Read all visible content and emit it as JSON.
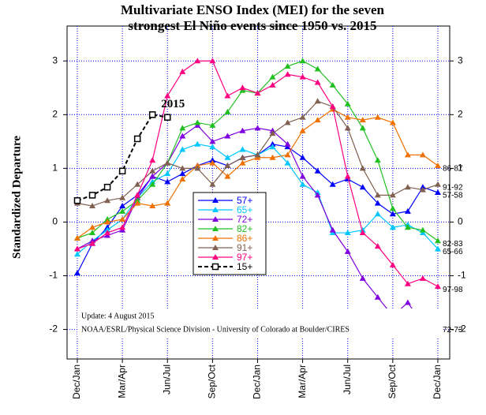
{
  "chart_data": {
    "type": "line",
    "title": [
      "Multivariate ENSO Index (MEI) for the seven",
      "strongest El Niño events since 1950 vs. 2015"
    ],
    "ylabel": "Standardized Departure",
    "categories": [
      "Dec/Jan",
      null,
      null,
      "Mar/Apr",
      null,
      null,
      "Jun/Jul",
      null,
      null,
      "Sep/Oct",
      null,
      null,
      "Dec/Jan",
      null,
      null,
      "Mar/Apr",
      null,
      null,
      "Jun/Jul",
      null,
      null,
      "Sep/Oct",
      null,
      null,
      "Dec/Jan"
    ],
    "ylim": [
      -2.55,
      3.65
    ],
    "yticks": [
      -2,
      -1,
      0,
      1,
      2,
      3
    ],
    "grid": true,
    "series": [
      {
        "name": "57+",
        "color": "#0000ff",
        "marker": "triangle",
        "label": "57-58",
        "values": [
          -0.95,
          -0.4,
          -0.1,
          0.3,
          0.5,
          0.85,
          0.75,
          0.9,
          1.05,
          1.15,
          1.05,
          1.2,
          1.25,
          1.45,
          1.4,
          1.2,
          0.95,
          0.7,
          0.8,
          0.65,
          0.35,
          0.15,
          0.2,
          0.65,
          0.55
        ]
      },
      {
        "name": "65+",
        "color": "#00c8ff",
        "marker": "triangle",
        "label": "65-66",
        "values": [
          -0.6,
          -0.35,
          -0.15,
          0.05,
          0.45,
          0.75,
          0.9,
          1.35,
          1.45,
          1.4,
          1.2,
          1.35,
          1.25,
          1.4,
          1.1,
          0.7,
          0.55,
          -0.2,
          -0.2,
          -0.15,
          0.15,
          -0.1,
          -0.05,
          -0.2,
          -0.5
        ]
      },
      {
        "name": "72+",
        "color": "#8000e0",
        "marker": "triangle",
        "label": "72-73",
        "values": [
          -0.5,
          -0.35,
          -0.25,
          -0.15,
          0.45,
          0.85,
          1.1,
          1.6,
          1.8,
          1.5,
          1.6,
          1.7,
          1.75,
          1.7,
          1.45,
          0.85,
          0.5,
          -0.15,
          -0.55,
          -1.05,
          -1.4,
          -1.75,
          -1.5,
          -1.9,
          -1.95
        ]
      },
      {
        "name": "82+",
        "color": "#20c020",
        "marker": "triangle",
        "label": "82-83",
        "values": [
          -0.3,
          -0.2,
          0.05,
          0.2,
          0.4,
          0.7,
          1.1,
          1.75,
          1.85,
          1.8,
          2.05,
          2.45,
          2.4,
          2.7,
          2.9,
          3.0,
          2.85,
          2.55,
          2.2,
          1.75,
          1.15,
          0.25,
          -0.1,
          -0.15,
          -0.35
        ]
      },
      {
        "name": "86+",
        "color": "#f07000",
        "marker": "triangle",
        "label": "86-87",
        "values": [
          -0.3,
          -0.1,
          0.0,
          0.05,
          0.35,
          0.3,
          0.35,
          0.8,
          1.05,
          1.1,
          0.85,
          1.1,
          1.2,
          1.2,
          1.25,
          1.7,
          1.9,
          2.1,
          1.95,
          1.9,
          1.95,
          1.85,
          1.25,
          1.25,
          1.05
        ]
      },
      {
        "name": "91+",
        "color": "#806050",
        "marker": "triangle",
        "label": "91-92",
        "values": [
          0.35,
          0.3,
          0.4,
          0.45,
          0.7,
          0.95,
          1.1,
          1.0,
          1.0,
          0.7,
          1.05,
          1.2,
          1.25,
          1.65,
          1.85,
          1.95,
          2.25,
          2.15,
          1.75,
          1.0,
          0.5,
          0.5,
          0.65,
          0.6,
          0.7
        ]
      },
      {
        "name": "97+",
        "color": "#ff0080",
        "marker": "triangle",
        "label": "97-98",
        "values": [
          -0.5,
          -0.4,
          -0.2,
          -0.1,
          0.5,
          1.15,
          2.35,
          2.8,
          3.0,
          3.0,
          2.35,
          2.5,
          2.4,
          2.55,
          2.75,
          2.7,
          2.6,
          2.15,
          0.85,
          -0.2,
          -0.45,
          -0.8,
          -1.15,
          -1.05,
          -1.2
        ]
      },
      {
        "name": "15+",
        "color": "#000000",
        "marker": "square",
        "dashed": true,
        "label": "2015",
        "values": [
          0.4,
          0.5,
          0.65,
          0.95,
          1.55,
          2.0,
          1.95,
          null,
          null,
          null,
          null,
          null,
          null,
          null,
          null,
          null,
          null,
          null,
          null,
          null,
          null,
          null,
          null,
          null,
          null
        ]
      }
    ],
    "notes": [
      "Update: 4 August 2015",
      "NOAA/ESRL/Physical Science Division - University of Colorado at Boulder/CIRES"
    ]
  }
}
